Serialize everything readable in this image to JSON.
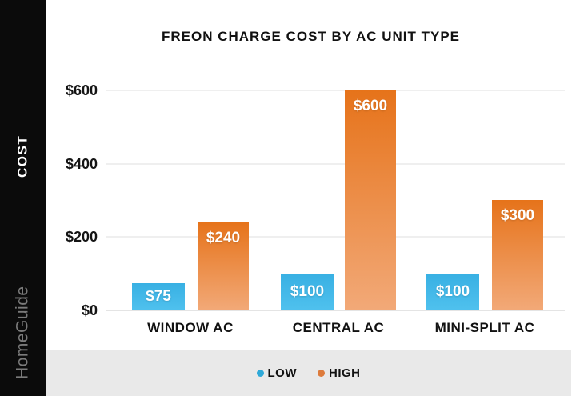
{
  "sidebar": {
    "axis_label": "COST",
    "watermark": "HomeGuide"
  },
  "chart_data": {
    "type": "bar",
    "title": "FREON CHARGE COST BY AC UNIT TYPE",
    "categories": [
      "WINDOW AC",
      "CENTRAL AC",
      "MINI-SPLIT AC"
    ],
    "series": [
      {
        "name": "LOW",
        "values": [
          75,
          100,
          100
        ],
        "bar_labels": [
          "$75",
          "$100",
          "$100"
        ]
      },
      {
        "name": "HIGH",
        "values": [
          240,
          600,
          300
        ],
        "bar_labels": [
          "$240",
          "$600",
          "$300"
        ]
      }
    ],
    "ylabel": "COST",
    "ylim": [
      0,
      600
    ],
    "ytick_values": [
      0,
      200,
      400,
      600
    ],
    "ytick_labels": [
      "$0",
      "$200",
      "$400",
      "$600"
    ],
    "grid": true,
    "legend_position": "bottom"
  },
  "legend": {
    "items": [
      {
        "label": "LOW",
        "dot_color": "#2fa9d8"
      },
      {
        "label": "HIGH",
        "dot_color": "#dd7b3c"
      }
    ]
  },
  "colors": {
    "low_top": "#38b0e3",
    "low_bottom": "#4fc1ee",
    "high_top": "#e6731a",
    "high_bottom": "#f2a978",
    "sidebar_bg": "#0b0b0b",
    "strip_bg": "#e9e9e9",
    "grid": "#efefef",
    "text": "#111111",
    "watermark_text": "#7a7a7a"
  }
}
